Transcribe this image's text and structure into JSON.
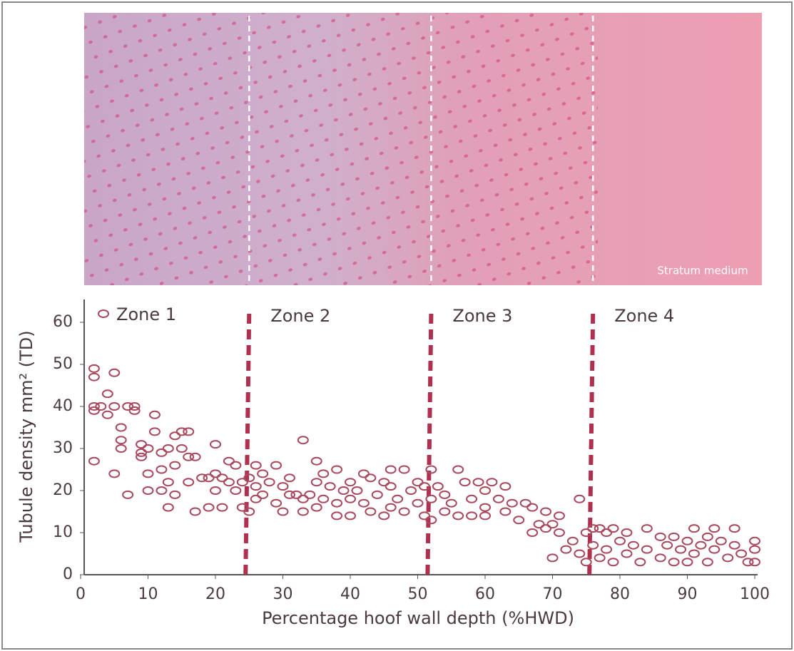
{
  "chart_data": {
    "type": "scatter",
    "image_label": "Stratum medium",
    "xlabel": "Percentage hoof wall depth (%HWD)",
    "ylabel": "Tubule density mm² (TD)",
    "xlim": [
      0,
      100
    ],
    "xticks": [
      0,
      10,
      20,
      30,
      40,
      50,
      60,
      70,
      80,
      90,
      100
    ],
    "ylim": [
      0,
      60
    ],
    "yticks": [
      0,
      10,
      20,
      30,
      40,
      50,
      60
    ],
    "zones": [
      {
        "label": "Zone 1",
        "start": 0
      },
      {
        "label": "Zone 2",
        "start": 25
      },
      {
        "label": "Zone 3",
        "start": 52
      },
      {
        "label": "Zone 4",
        "start": 76
      }
    ],
    "series": [
      {
        "color": "#a8485c",
        "x": [
          2,
          2,
          2,
          2,
          2,
          3,
          4,
          4,
          5,
          5,
          5,
          6,
          6,
          6,
          7,
          7,
          8,
          8,
          9,
          9,
          9,
          10,
          10,
          10,
          11,
          11,
          12,
          12,
          12,
          13,
          13,
          13,
          14,
          14,
          14,
          15,
          15,
          16,
          16,
          16,
          17,
          17,
          18,
          19,
          19,
          20,
          20,
          20,
          21,
          21,
          22,
          22,
          23,
          23,
          24,
          24,
          25,
          25,
          26,
          26,
          26,
          27,
          27,
          28,
          29,
          29,
          30,
          30,
          31,
          31,
          32,
          33,
          33,
          33,
          34,
          35,
          35,
          35,
          36,
          36,
          37,
          38,
          38,
          38,
          39,
          40,
          40,
          40,
          41,
          42,
          42,
          43,
          43,
          44,
          45,
          45,
          46,
          46,
          46,
          47,
          48,
          48,
          49,
          50,
          50,
          51,
          51,
          52,
          52,
          52,
          53,
          54,
          54,
          55,
          56,
          56,
          57,
          58,
          58,
          59,
          60,
          60,
          60,
          61,
          62,
          63,
          63,
          64,
          65,
          66,
          67,
          67,
          68,
          69,
          69,
          70,
          70,
          71,
          71,
          72,
          73,
          74,
          74,
          75,
          75,
          76,
          76,
          77,
          77,
          78,
          78,
          79,
          79,
          80,
          81,
          81,
          82,
          83,
          84,
          84,
          86,
          86,
          87,
          88,
          88,
          89,
          90,
          90,
          91,
          91,
          92,
          93,
          93,
          94,
          94,
          95,
          96,
          97,
          97,
          98,
          99,
          100,
          100,
          100
        ],
        "values": [
          49,
          47,
          40,
          39,
          27,
          40,
          43,
          38,
          48,
          40,
          24,
          35,
          32,
          30,
          40,
          19,
          40,
          39,
          31,
          29,
          28,
          30,
          24,
          20,
          38,
          34,
          29,
          25,
          20,
          30,
          22,
          16,
          33,
          26,
          19,
          34,
          30,
          34,
          28,
          22,
          28,
          15,
          23,
          23,
          16,
          31,
          24,
          20,
          23,
          16,
          27,
          22,
          26,
          20,
          22,
          16,
          23,
          15,
          26,
          21,
          18,
          24,
          19,
          22,
          26,
          17,
          21,
          15,
          23,
          19,
          19,
          32,
          18,
          15,
          19,
          27,
          22,
          16,
          24,
          18,
          21,
          25,
          17,
          14,
          20,
          22,
          18,
          14,
          20,
          24,
          17,
          23,
          15,
          19,
          22,
          14,
          25,
          21,
          16,
          18,
          25,
          15,
          20,
          22,
          17,
          21,
          14,
          25,
          18,
          13,
          21,
          19,
          15,
          17,
          25,
          14,
          22,
          18,
          14,
          22,
          20,
          16,
          14,
          22,
          18,
          21,
          15,
          17,
          13,
          17,
          16,
          10,
          12,
          15,
          11,
          12,
          4,
          14,
          10,
          6,
          8,
          18,
          5,
          10,
          3,
          11,
          7,
          11,
          4,
          10,
          6,
          11,
          3,
          8,
          10,
          5,
          7,
          3,
          11,
          6,
          9,
          4,
          7,
          9,
          3,
          6,
          8,
          3,
          11,
          5,
          7,
          9,
          3,
          11,
          6,
          8,
          4,
          11,
          7,
          5,
          3,
          8,
          6,
          3
        ]
      }
    ]
  }
}
